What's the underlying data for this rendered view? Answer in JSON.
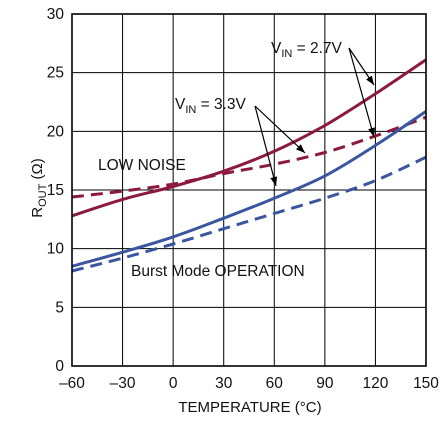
{
  "chart_data": {
    "type": "line",
    "xlabel": "TEMPERATURE (°C)",
    "ylabel": "R",
    "ylabel_sub": "OUT",
    "ylabel_unit": " (Ω)",
    "xlim": [
      -60,
      150
    ],
    "ylim": [
      0,
      30
    ],
    "xticks": [
      "–60",
      "–30",
      "0",
      "30",
      "60",
      "90",
      "120",
      "150"
    ],
    "yticks": [
      "0",
      "5",
      "10",
      "15",
      "20",
      "25",
      "30"
    ],
    "grid": true,
    "annotations": {
      "vin27": {
        "main": "V",
        "sub": "IN",
        "rest": " = 2.7V"
      },
      "vin33": {
        "main": "V",
        "sub": "IN",
        "rest": " = 3.3V"
      },
      "low_noise": "LOW NOISE",
      "burst_mode": "Burst Mode OPERATION"
    },
    "colors": {
      "low_noise": "#8c1a3c",
      "burst_mode": "#3b56a0",
      "grid": "#000000"
    },
    "series": [
      {
        "mode": "low-noise",
        "vin": "2.7V",
        "style": "solid",
        "color": "#8c1a3c",
        "x": [
          -60,
          -30,
          0,
          30,
          60,
          90,
          120,
          150
        ],
        "y": [
          12.8,
          14.2,
          15.3,
          16.6,
          18.3,
          20.5,
          23.2,
          26.1
        ]
      },
      {
        "mode": "low-noise",
        "vin": "3.3V",
        "style": "dashed",
        "color": "#8c1a3c",
        "x": [
          -60,
          -30,
          0,
          30,
          60,
          90,
          120,
          150
        ],
        "y": [
          14.4,
          14.9,
          15.5,
          16.4,
          17.2,
          18.2,
          19.6,
          21.2
        ]
      },
      {
        "mode": "burst",
        "vin": "2.7V",
        "style": "solid",
        "color": "#3b56a0",
        "x": [
          -60,
          -30,
          0,
          30,
          60,
          90,
          120,
          150
        ],
        "y": [
          8.5,
          9.7,
          11.0,
          12.6,
          14.3,
          16.2,
          18.8,
          21.7
        ]
      },
      {
        "mode": "burst",
        "vin": "3.3V",
        "style": "dashed",
        "color": "#3b56a0",
        "x": [
          -60,
          -30,
          0,
          30,
          60,
          90,
          120,
          150
        ],
        "y": [
          8.1,
          9.2,
          10.4,
          11.7,
          13.0,
          14.3,
          15.8,
          17.8
        ]
      }
    ]
  }
}
